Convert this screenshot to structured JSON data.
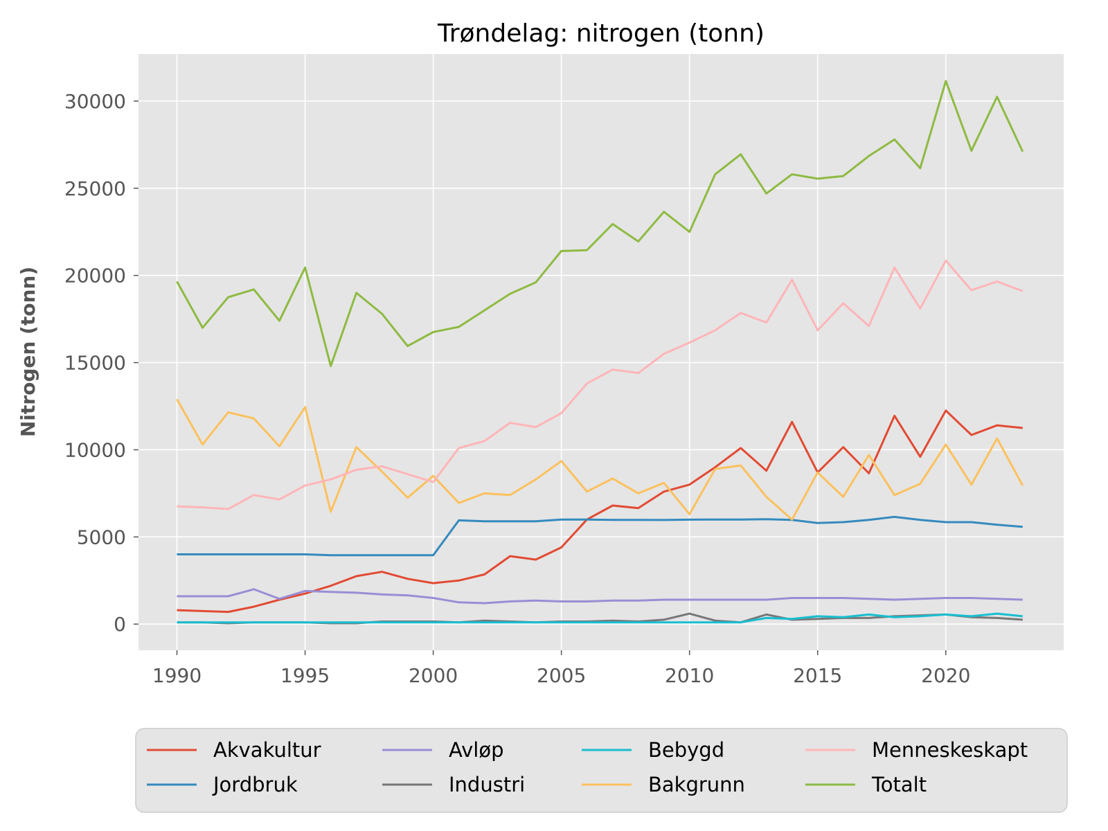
{
  "chart_data": {
    "type": "line",
    "title": "Trøndelag: nitrogen (tonn)",
    "xlabel": "",
    "ylabel": "Nitrogen (tonn)",
    "xlim": [
      1988.5,
      2024.6
    ],
    "ylim": [
      -1500,
      32700
    ],
    "xticks": [
      1990,
      1995,
      2000,
      2005,
      2010,
      2015,
      2020
    ],
    "yticks": [
      0,
      5000,
      10000,
      15000,
      20000,
      25000,
      30000
    ],
    "grid": true,
    "background": "#e5e5e5",
    "legend_position": "bottom",
    "x": [
      1990,
      1991,
      1992,
      1993,
      1994,
      1995,
      1996,
      1997,
      1998,
      1999,
      2000,
      2001,
      2002,
      2003,
      2004,
      2005,
      2006,
      2007,
      2008,
      2009,
      2010,
      2011,
      2012,
      2013,
      2014,
      2015,
      2016,
      2017,
      2018,
      2019,
      2020,
      2021,
      2022,
      2023
    ],
    "series": [
      {
        "name": "Akvakultur",
        "color": "#e24a33",
        "values": [
          800,
          750,
          700,
          1000,
          1400,
          1750,
          2200,
          2750,
          3000,
          2600,
          2350,
          2500,
          2850,
          3900,
          3700,
          4400,
          6000,
          6800,
          6650,
          7600,
          8000,
          9000,
          10100,
          8800,
          11600,
          8700,
          10150,
          8650,
          11950,
          9600,
          12250,
          10850,
          11400,
          11250
        ]
      },
      {
        "name": "Jordbruk",
        "color": "#348abd",
        "values": [
          4000,
          4000,
          4000,
          4000,
          4000,
          4000,
          3950,
          3950,
          3950,
          3950,
          3950,
          5950,
          5900,
          5900,
          5900,
          6000,
          6000,
          5980,
          5980,
          5970,
          5990,
          6000,
          6000,
          6020,
          5980,
          5800,
          5850,
          5980,
          6150,
          5980,
          5850,
          5850,
          5700,
          5580
        ]
      },
      {
        "name": "Avløp",
        "color": "#988ed5",
        "values": [
          1600,
          1600,
          1600,
          2000,
          1450,
          1900,
          1850,
          1800,
          1700,
          1650,
          1500,
          1250,
          1200,
          1300,
          1350,
          1300,
          1300,
          1350,
          1350,
          1400,
          1400,
          1400,
          1400,
          1400,
          1500,
          1500,
          1500,
          1450,
          1400,
          1450,
          1500,
          1500,
          1450,
          1400
        ]
      },
      {
        "name": "Industri",
        "color": "#777777",
        "values": [
          100,
          100,
          50,
          100,
          100,
          100,
          50,
          50,
          150,
          150,
          150,
          100,
          200,
          150,
          100,
          150,
          150,
          200,
          150,
          250,
          600,
          200,
          100,
          550,
          250,
          300,
          350,
          350,
          450,
          500,
          550,
          400,
          350,
          250
        ]
      },
      {
        "name": "Bebygd",
        "color": "#17becf",
        "values": [
          100,
          100,
          100,
          100,
          100,
          100,
          100,
          100,
          100,
          100,
          100,
          100,
          100,
          100,
          100,
          100,
          100,
          100,
          100,
          100,
          100,
          100,
          100,
          350,
          300,
          450,
          400,
          550,
          400,
          450,
          550,
          450,
          600,
          450
        ]
      },
      {
        "name": "Bakgrunn",
        "color": "#fbc15e",
        "values": [
          12900,
          10300,
          12150,
          11800,
          10200,
          12450,
          6450,
          10150,
          8750,
          7250,
          8500,
          6950,
          7500,
          7400,
          8300,
          9350,
          7600,
          8350,
          7500,
          8100,
          6300,
          8900,
          9100,
          7300,
          6000,
          8700,
          7300,
          9700,
          7400,
          8050,
          10300,
          8000,
          10650,
          7950
        ]
      },
      {
        "name": "Menneskeskapt",
        "color": "#ffb5b8",
        "values": [
          6750,
          6700,
          6600,
          7400,
          7150,
          7950,
          8300,
          8850,
          9050,
          8600,
          8150,
          10100,
          10500,
          11550,
          11300,
          12100,
          13800,
          14600,
          14400,
          15500,
          16150,
          16850,
          17850,
          17300,
          19750,
          16850,
          18400,
          17100,
          20450,
          18100,
          20850,
          19150,
          19650,
          19100
        ]
      },
      {
        "name": "Totalt",
        "color": "#8eba42",
        "values": [
          19650,
          17000,
          18750,
          19200,
          17400,
          20450,
          14800,
          19000,
          17800,
          15950,
          16750,
          17050,
          18000,
          18950,
          19600,
          21400,
          21450,
          22950,
          21950,
          23650,
          22500,
          25800,
          26950,
          24700,
          25800,
          25550,
          25700,
          26850,
          27800,
          26150,
          31150,
          27150,
          30250,
          27100
        ]
      }
    ]
  }
}
